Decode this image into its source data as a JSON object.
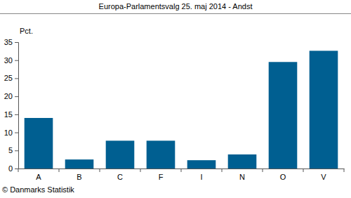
{
  "chart_data": {
    "type": "bar",
    "title": "Europa-Parlamentsvalg 25. maj 2014 - Andst",
    "y_label": "Pct.",
    "source": "© Danmarks Statistik",
    "categories": [
      "A",
      "B",
      "C",
      "F",
      "I",
      "N",
      "O",
      "V"
    ],
    "values": [
      14.0,
      2.5,
      7.7,
      7.7,
      2.3,
      3.9,
      29.5,
      32.6
    ],
    "color": "#005f91",
    "ylim": [
      0,
      35
    ],
    "yticks": [
      0,
      5,
      10,
      15,
      20,
      25,
      30,
      35
    ],
    "grid": false
  }
}
